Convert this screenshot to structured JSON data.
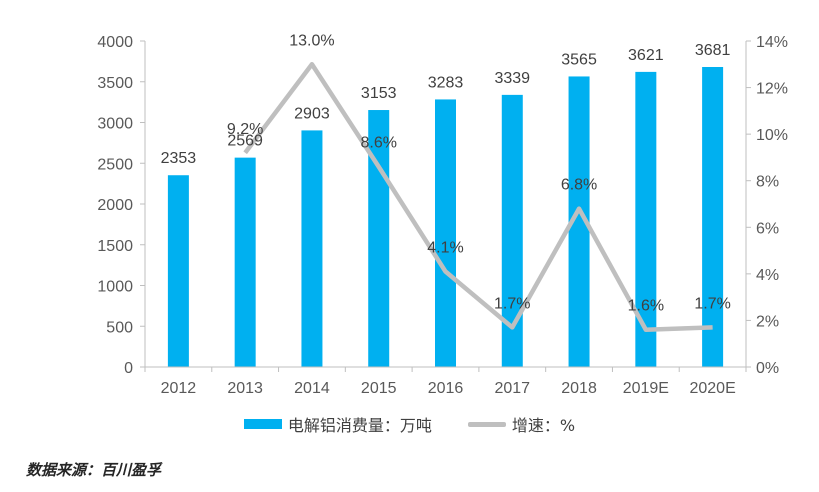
{
  "chart_data": {
    "type": "bar",
    "categories": [
      "2012",
      "2013",
      "2014",
      "2015",
      "2016",
      "2017",
      "2018",
      "2019E",
      "2020E"
    ],
    "series": [
      {
        "name": "电解铝消费量：万吨",
        "type": "bar",
        "axis": "left",
        "color": "#00b0f0",
        "values": [
          2353,
          2569,
          2903,
          3153,
          3283,
          3339,
          3565,
          3621,
          3681
        ],
        "labels": [
          "2353",
          "2569",
          "2903",
          "3153",
          "3283",
          "3339",
          "3565",
          "3621",
          "3681"
        ]
      },
      {
        "name": "增速：%",
        "type": "line",
        "axis": "right",
        "color": "#bfbfbf",
        "values": [
          null,
          9.2,
          13.0,
          8.6,
          4.1,
          1.7,
          6.8,
          1.6,
          1.7
        ],
        "labels": [
          "",
          "9.2%",
          "13.0%",
          "8.6%",
          "4.1%",
          "1.7%",
          "6.8%",
          "1.6%",
          "1.7%"
        ]
      }
    ],
    "y_left": {
      "range": [
        0,
        4000
      ],
      "ticks": [
        "0",
        "500",
        "1000",
        "1500",
        "2000",
        "2500",
        "3000",
        "3500",
        "4000"
      ]
    },
    "y_right": {
      "range": [
        0,
        14
      ],
      "ticks": [
        "0%",
        "2%",
        "4%",
        "6%",
        "8%",
        "10%",
        "12%",
        "14%"
      ]
    },
    "grid": false,
    "legend": "bottom"
  },
  "source": "数据来源：百川盈孚"
}
